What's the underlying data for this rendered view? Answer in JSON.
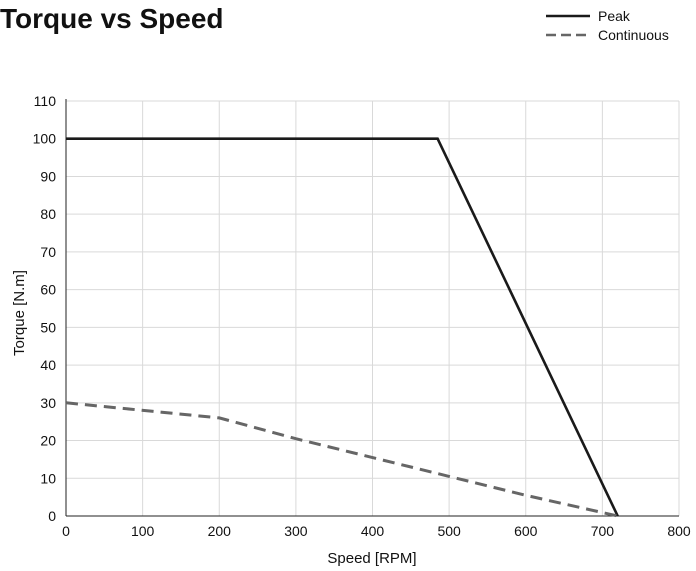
{
  "chart_data": {
    "type": "line",
    "title": "Torque vs Speed",
    "xlabel": "Speed [RPM]",
    "ylabel": "Torque [N.m]",
    "xlim": [
      0,
      800
    ],
    "ylim": [
      0,
      110
    ],
    "xticks": [
      0,
      100,
      200,
      300,
      400,
      500,
      600,
      700,
      800
    ],
    "yticks": [
      0,
      10,
      20,
      30,
      40,
      50,
      60,
      70,
      80,
      90,
      100,
      110
    ],
    "grid": true,
    "legend_position": "top-right",
    "series": [
      {
        "name": "Peak",
        "style": "solid",
        "color": "#1a1a1a",
        "points": [
          [
            0,
            100
          ],
          [
            485,
            100
          ],
          [
            720,
            0
          ]
        ]
      },
      {
        "name": "Continuous",
        "style": "dashed",
        "color": "#666666",
        "points": [
          [
            0,
            30
          ],
          [
            200,
            26
          ],
          [
            300,
            20.5
          ],
          [
            500,
            10.5
          ],
          [
            600,
            5.5
          ],
          [
            720,
            0
          ]
        ]
      }
    ]
  }
}
